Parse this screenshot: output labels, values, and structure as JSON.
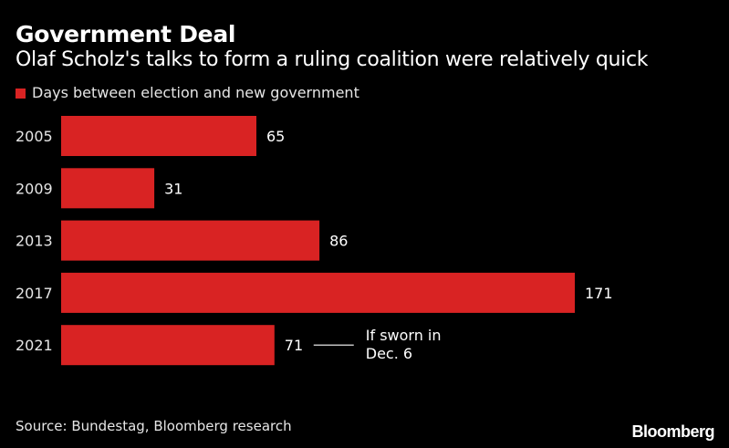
{
  "chart_data": {
    "type": "bar",
    "orientation": "horizontal",
    "title": "Government Deal",
    "subtitle": "Olaf Scholz's talks to form a ruling coalition were relatively quick",
    "categories": [
      "2005",
      "2009",
      "2013",
      "2017",
      "2021"
    ],
    "series": [
      {
        "name": "Days between election and new government",
        "values": [
          65,
          31,
          86,
          171,
          71
        ],
        "color": "#d92323"
      }
    ],
    "xlim": [
      0,
      171
    ],
    "grid": false,
    "legend": "top-left",
    "annotations": [
      {
        "category": "2021",
        "line1": "If sworn in",
        "line2": "Dec. 6"
      }
    ]
  },
  "footer": {
    "source": "Source: Bundestag, Bloomberg research",
    "brand": "Bloomberg"
  }
}
